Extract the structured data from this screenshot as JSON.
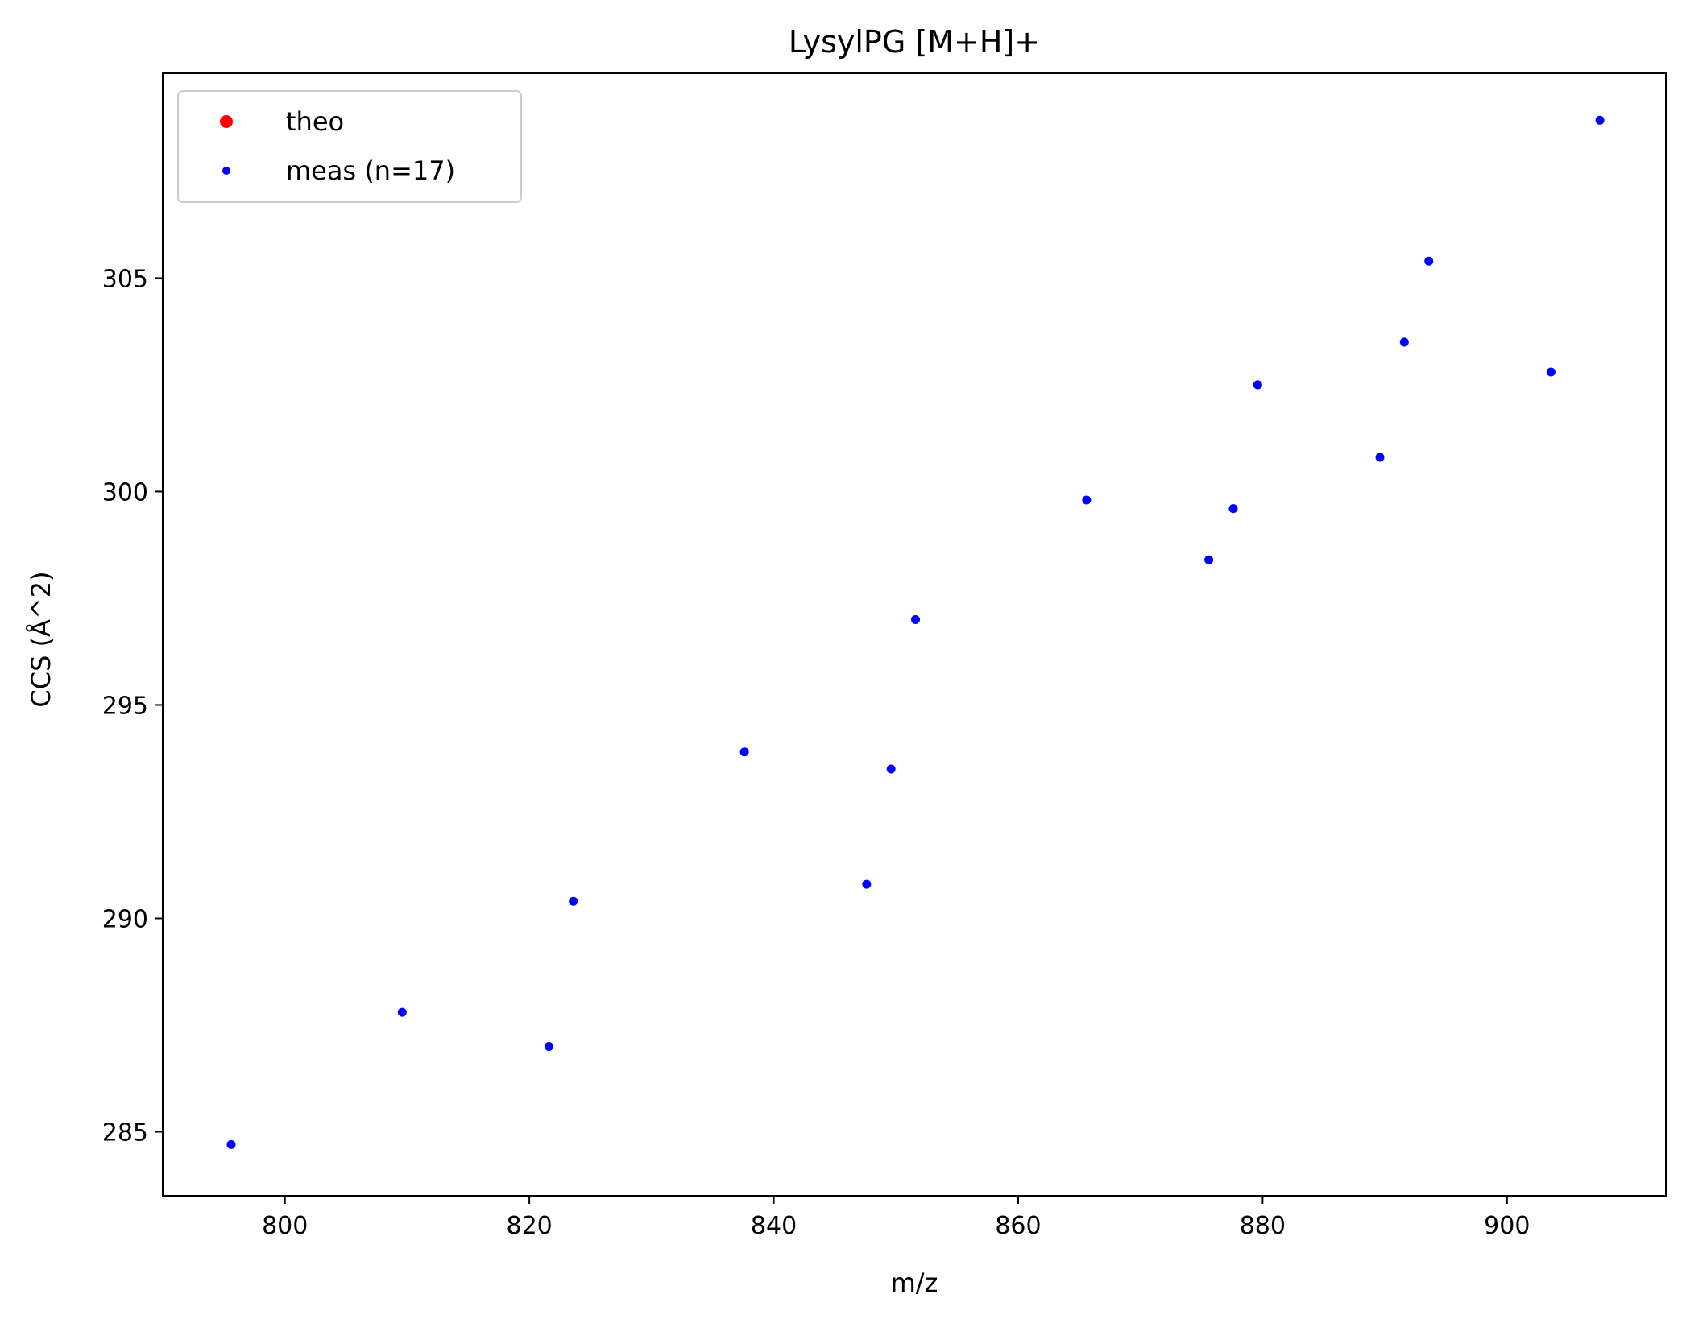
{
  "chart_data": {
    "type": "scatter",
    "title": "LysylPG [M+H]+",
    "xlabel": "m/z",
    "ylabel": "CCS (Å^2)",
    "xlim": [
      790,
      913
    ],
    "ylim": [
      283.5,
      309.8
    ],
    "xticks": [
      800,
      820,
      840,
      860,
      880,
      900
    ],
    "yticks": [
      285,
      290,
      295,
      300,
      305
    ],
    "grid": false,
    "legend_position": "top-left",
    "series": [
      {
        "name": "theo",
        "color": "#ff0000",
        "points": []
      },
      {
        "name": "meas (n=17)",
        "color": "#0000ff",
        "points": [
          [
            795.6,
            284.7
          ],
          [
            809.6,
            287.8
          ],
          [
            821.6,
            287.0
          ],
          [
            823.6,
            290.4
          ],
          [
            837.6,
            293.9
          ],
          [
            847.6,
            290.8
          ],
          [
            849.6,
            293.5
          ],
          [
            851.6,
            297.0
          ],
          [
            865.6,
            299.8
          ],
          [
            875.6,
            298.4
          ],
          [
            877.6,
            299.6
          ],
          [
            879.6,
            302.5
          ],
          [
            889.6,
            300.8
          ],
          [
            891.6,
            303.5
          ],
          [
            893.6,
            305.4
          ],
          [
            903.6,
            302.8
          ],
          [
            907.6,
            308.7
          ]
        ]
      }
    ]
  }
}
